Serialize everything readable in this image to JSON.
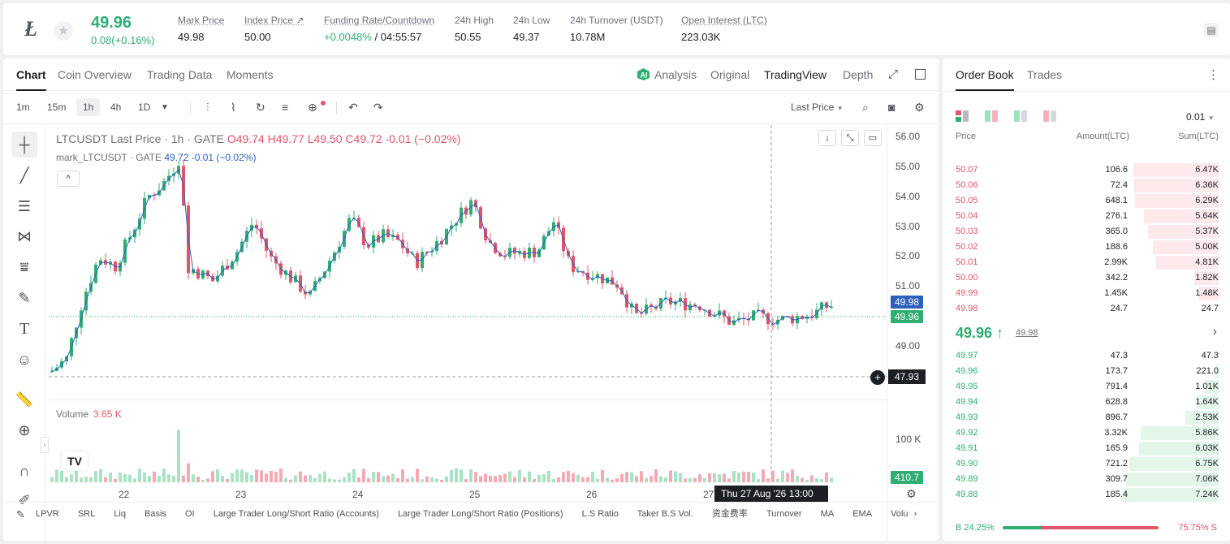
{
  "ticker": {
    "coin_glyph": "Ł",
    "last_price": "49.96",
    "change": "0.08(+0.16%)",
    "stats": [
      {
        "label": "Mark Price",
        "value": "49.98"
      },
      {
        "label": "Index Price ↗",
        "value": "50.00"
      },
      {
        "label": "Funding Rate/Countdown",
        "value_green": "+0.0048%",
        "value": " / 04:55:57"
      },
      {
        "label": "24h High",
        "value": "50.55"
      },
      {
        "label": "24h Low",
        "value": "49.37"
      },
      {
        "label": "24h Turnover (USDT)",
        "value": "10.78M"
      },
      {
        "label": "Open Interest (LTC)",
        "value": "223.03K"
      }
    ]
  },
  "chart_tabs": [
    "Chart",
    "Coin Overview",
    "Trading Data",
    "Moments"
  ],
  "chart_view_tabs": {
    "analysis": "Analysis",
    "original": "Original",
    "tradingview": "TradingView",
    "depth": "Depth"
  },
  "timeframes": [
    "1m",
    "15m",
    "1h",
    "4h",
    "1D"
  ],
  "price_type": "Last Price",
  "legend": {
    "symbol": "LTCUSDT Last Price · 1h · GATE",
    "o": "O49.74",
    "h": "H49.77",
    "l": "L49.50",
    "c": "C49.72",
    "chg": "-0.01 (−0.02%)",
    "mark_label": "mark_LTCUSDT · GATE",
    "mark_value": "49.72 -0.01 (−0.02%)"
  },
  "volume": {
    "label": "Volume",
    "value": "3.65 K",
    "axis_label": "100 K",
    "tag": "410.7"
  },
  "y_axis_labels": [
    "56.00",
    "55.00",
    "54.00",
    "53.00",
    "52.00",
    "51.00",
    "49.00"
  ],
  "price_tags": {
    "mark": "49.98",
    "last": "49.96",
    "cursor": "47.93"
  },
  "x_axis_labels": [
    "22",
    "23",
    "24",
    "25",
    "26",
    "27"
  ],
  "crosshair_time": "Thu 27 Aug '26   13:00",
  "bottom_indicators": [
    "LPVR",
    "SRL",
    "Liq",
    "Basis",
    "OI",
    "Large Trader Long/Short Ratio (Accounts)",
    "Large Trader Long/Short Ratio (Positions)",
    "L.S Ratio",
    "Taker B.S Vol.",
    "资金费率",
    "Turnover",
    "MA",
    "EMA",
    "Volu"
  ],
  "orderbook": {
    "tabs": [
      "Order Book",
      "Trades"
    ],
    "precision": "0.01",
    "headers": {
      "price": "Price",
      "amount": "Amount(LTC)",
      "sum": "Sum(LTC)"
    },
    "asks": [
      {
        "price": "50.07",
        "amount": "106.6",
        "sum": "6.47K",
        "depth": 0.89
      },
      {
        "price": "50.06",
        "amount": "72.4",
        "sum": "6.36K",
        "depth": 0.88
      },
      {
        "price": "50.05",
        "amount": "648.1",
        "sum": "6.29K",
        "depth": 0.87
      },
      {
        "price": "50.04",
        "amount": "276.1",
        "sum": "5.64K",
        "depth": 0.78
      },
      {
        "price": "50.03",
        "amount": "365.0",
        "sum": "5.37K",
        "depth": 0.74
      },
      {
        "price": "50.02",
        "amount": "188.6",
        "sum": "5.00K",
        "depth": 0.69
      },
      {
        "price": "50.01",
        "amount": "2.99K",
        "sum": "4.81K",
        "depth": 0.66
      },
      {
        "price": "50.00",
        "amount": "342.2",
        "sum": "1.82K",
        "depth": 0.25
      },
      {
        "price": "49.99",
        "amount": "1.45K",
        "sum": "1.48K",
        "depth": 0.2
      },
      {
        "price": "49.98",
        "amount": "24.7",
        "sum": "24.7",
        "depth": 0.0
      }
    ],
    "mid": {
      "price": "49.96 ↑",
      "mark": "49.98"
    },
    "bids": [
      {
        "price": "49.97",
        "amount": "47.3",
        "sum": "47.3",
        "depth": 0.0
      },
      {
        "price": "49.96",
        "amount": "173.7",
        "sum": "221.0",
        "depth": 0.03
      },
      {
        "price": "49.95",
        "amount": "791.4",
        "sum": "1.01K",
        "depth": 0.14
      },
      {
        "price": "49.94",
        "amount": "628.8",
        "sum": "1.64K",
        "depth": 0.23
      },
      {
        "price": "49.93",
        "amount": "896.7",
        "sum": "2.53K",
        "depth": 0.35
      },
      {
        "price": "49.92",
        "amount": "3.32K",
        "sum": "5.86K",
        "depth": 0.81
      },
      {
        "price": "49.91",
        "amount": "165.9",
        "sum": "6.03K",
        "depth": 0.83
      },
      {
        "price": "49.90",
        "amount": "721.2",
        "sum": "6.75K",
        "depth": 0.93
      },
      {
        "price": "49.89",
        "amount": "309.7",
        "sum": "7.06K",
        "depth": 0.97
      },
      {
        "price": "49.88",
        "amount": "185.4",
        "sum": "7.24K",
        "depth": 1.0
      }
    ],
    "ratio": {
      "buy_label": "B 24.25%",
      "sell_label": "75.75% S",
      "buy_fraction": 0.2425
    }
  },
  "colors": {
    "up": "#2fae73",
    "down": "#e0556a"
  }
}
